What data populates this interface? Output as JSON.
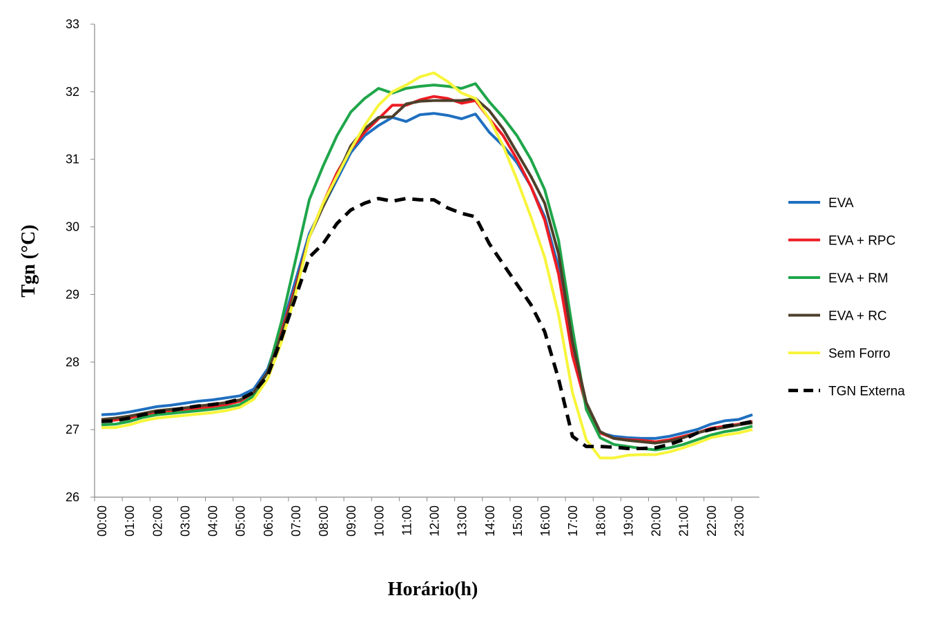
{
  "chart_data": {
    "type": "line",
    "xlabel": "Horário(h)",
    "ylabel": "Tgn (°C)",
    "categories": [
      "00:00",
      null,
      "01:00",
      null,
      "02:00",
      null,
      "03:00",
      null,
      "04:00",
      null,
      "05:00",
      null,
      "06:00",
      null,
      "07:00",
      null,
      "08:00",
      null,
      "09:00",
      null,
      "10:00",
      null,
      "11:00",
      null,
      "12:00",
      null,
      "13:00",
      null,
      "14:00",
      null,
      "15:00",
      null,
      "16:00",
      null,
      "17:00",
      null,
      "18:00",
      null,
      "19:00",
      null,
      "20:00",
      null,
      "21:00",
      null,
      "22:00",
      null,
      "23:00",
      null
    ],
    "ylim": [
      26,
      33
    ],
    "yticks": [
      26,
      27,
      28,
      29,
      30,
      31,
      32,
      33
    ],
    "grid": false,
    "legend": "right",
    "series": [
      {
        "name": "EVA",
        "color": "#1f6fbf",
        "dash": false,
        "values": [
          27.22,
          27.23,
          27.26,
          27.3,
          27.34,
          27.36,
          27.39,
          27.42,
          27.44,
          27.47,
          27.5,
          27.6,
          27.9,
          28.5,
          29.2,
          29.9,
          30.3,
          30.7,
          31.1,
          31.35,
          31.5,
          31.62,
          31.56,
          31.66,
          31.68,
          31.65,
          31.6,
          31.67,
          31.4,
          31.2,
          30.95,
          30.6,
          30.15,
          29.4,
          28.2,
          27.35,
          26.95,
          26.9,
          26.88,
          26.87,
          26.87,
          26.9,
          26.95,
          27.0,
          27.08,
          27.13,
          27.15,
          27.22
        ]
      },
      {
        "name": "EVA + RPC",
        "color": "#ed1c24",
        "dash": false,
        "values": [
          27.12,
          27.14,
          27.17,
          27.22,
          27.26,
          27.28,
          27.3,
          27.32,
          27.34,
          27.37,
          27.42,
          27.55,
          27.85,
          28.45,
          29.1,
          29.85,
          30.35,
          30.8,
          31.15,
          31.4,
          31.6,
          31.8,
          31.8,
          31.88,
          31.93,
          31.9,
          31.83,
          31.87,
          31.6,
          31.35,
          31.0,
          30.6,
          30.1,
          29.3,
          28.1,
          27.35,
          26.95,
          26.87,
          26.85,
          26.84,
          26.82,
          26.85,
          26.9,
          26.95,
          27.02,
          27.05,
          27.08,
          27.12
        ]
      },
      {
        "name": "EVA + RM",
        "color": "#1fa64a",
        "dash": false,
        "values": [
          27.07,
          27.08,
          27.12,
          27.18,
          27.22,
          27.24,
          27.26,
          27.28,
          27.3,
          27.33,
          27.37,
          27.5,
          27.85,
          28.6,
          29.5,
          30.4,
          30.9,
          31.35,
          31.7,
          31.9,
          32.05,
          31.98,
          32.05,
          32.08,
          32.1,
          32.08,
          32.05,
          32.12,
          31.85,
          31.62,
          31.35,
          31.0,
          30.55,
          29.8,
          28.5,
          27.3,
          26.88,
          26.78,
          26.75,
          26.72,
          26.7,
          26.73,
          26.78,
          26.85,
          26.92,
          26.97,
          27.0,
          27.05
        ]
      },
      {
        "name": "EVA + RC",
        "color": "#4d3f2a",
        "dash": false,
        "values": [
          27.15,
          27.17,
          27.2,
          27.24,
          27.28,
          27.3,
          27.32,
          27.35,
          27.37,
          27.4,
          27.44,
          27.55,
          27.85,
          28.4,
          29.05,
          29.85,
          30.3,
          30.75,
          31.2,
          31.45,
          31.62,
          31.63,
          31.82,
          31.86,
          31.87,
          31.87,
          31.87,
          31.9,
          31.72,
          31.45,
          31.1,
          30.75,
          30.35,
          29.6,
          28.3,
          27.4,
          26.97,
          26.87,
          26.84,
          26.82,
          26.8,
          26.83,
          26.88,
          26.95,
          27.0,
          27.03,
          27.07,
          27.1
        ]
      },
      {
        "name": "Sem Forro",
        "color": "#f7f53a",
        "dash": false,
        "values": [
          27.03,
          27.03,
          27.07,
          27.13,
          27.17,
          27.19,
          27.21,
          27.23,
          27.25,
          27.28,
          27.33,
          27.45,
          27.75,
          28.3,
          29.0,
          29.85,
          30.35,
          30.75,
          31.15,
          31.5,
          31.8,
          32.0,
          32.1,
          32.22,
          32.28,
          32.15,
          31.98,
          31.9,
          31.6,
          31.2,
          30.7,
          30.15,
          29.55,
          28.7,
          27.55,
          26.85,
          26.58,
          26.58,
          26.62,
          26.63,
          26.63,
          26.67,
          26.73,
          26.8,
          26.88,
          26.92,
          26.95,
          27.0
        ]
      },
      {
        "name": "TGN Externa",
        "color": "#000000",
        "dash": true,
        "values": [
          27.12,
          27.13,
          27.17,
          27.22,
          27.26,
          27.28,
          27.32,
          27.35,
          27.37,
          27.4,
          27.45,
          27.55,
          27.8,
          28.35,
          28.95,
          29.55,
          29.75,
          30.05,
          30.25,
          30.35,
          30.42,
          30.38,
          30.42,
          30.4,
          30.4,
          30.28,
          30.2,
          30.15,
          29.75,
          29.45,
          29.15,
          28.85,
          28.45,
          27.75,
          26.9,
          26.75,
          26.75,
          26.74,
          26.72,
          26.72,
          26.73,
          26.78,
          26.85,
          26.95,
          27.0,
          27.05,
          27.08,
          27.12
        ]
      }
    ]
  }
}
